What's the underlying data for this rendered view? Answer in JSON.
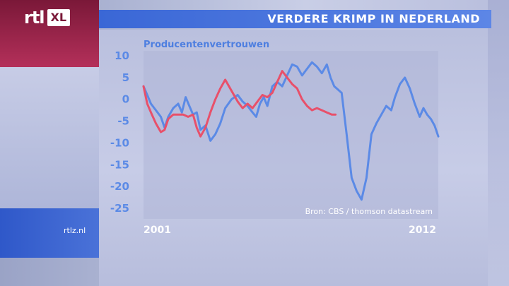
{
  "header": {
    "logo": "rtl XL",
    "title": "VERDERE KRIMP IN NEDERLAND"
  },
  "footer": {
    "site": "rtlz.nl"
  },
  "colors": {
    "primary_line": "#5b8ae6",
    "secondary_line": "#e8506a",
    "title_bar": "#3a67d6",
    "brand": "#7a1838"
  },
  "chart_data": {
    "type": "line",
    "title": "Producentenvertrouwen",
    "source": "Bron: CBS / thomson datastream",
    "xlabel": "",
    "ylabel": "",
    "x_range": [
      2001.0,
      2012.9
    ],
    "x_tick_labels": [
      "2001",
      "2012"
    ],
    "ylim": [
      -26,
      11
    ],
    "y_ticks": [
      10,
      5,
      0,
      -5,
      -10,
      -15,
      -20,
      -25
    ],
    "grid": false,
    "series": [
      {
        "color": "#5b8ae6",
        "x": [
          2001.0,
          2001.15,
          2001.3,
          2001.5,
          2001.7,
          2001.85,
          2002.0,
          2002.2,
          2002.4,
          2002.55,
          2002.7,
          2002.85,
          2003.0,
          2003.15,
          2003.3,
          2003.5,
          2003.7,
          2003.9,
          2004.1,
          2004.3,
          2004.55,
          2004.8,
          2005.0,
          2005.2,
          2005.4,
          2005.55,
          2005.7,
          2005.85,
          2006.0,
          2006.2,
          2006.4,
          2006.6,
          2006.8,
          2007.0,
          2007.2,
          2007.4,
          2007.6,
          2007.8,
          2008.0,
          2008.2,
          2008.4,
          2008.55,
          2008.7,
          2008.8,
          2009.0,
          2009.2,
          2009.4,
          2009.6,
          2009.8,
          2010.0,
          2010.2,
          2010.4,
          2010.6,
          2010.8,
          2011.0,
          2011.15,
          2011.35,
          2011.55,
          2011.75,
          2011.95,
          2012.15,
          2012.3,
          2012.45,
          2012.6,
          2012.75,
          2012.9
        ],
        "y": [
          3.0,
          1.0,
          -1.0,
          -2.5,
          -4.0,
          -6.5,
          -4.0,
          -2.0,
          -1.0,
          -3.0,
          0.5,
          -1.5,
          -3.5,
          -3.0,
          -7.0,
          -6.0,
          -9.5,
          -8.0,
          -5.5,
          -2.0,
          0.0,
          1.0,
          -0.5,
          -1.5,
          -3.0,
          -4.0,
          -1.0,
          0.5,
          -1.5,
          3.0,
          4.0,
          3.0,
          5.5,
          8.0,
          7.5,
          5.5,
          7.0,
          8.5,
          7.5,
          6.0,
          8.0,
          5.0,
          3.0,
          2.5,
          1.5,
          -8.0,
          -18.0,
          -21.0,
          -23.0,
          -18.0,
          -8.0,
          -5.5,
          -3.5,
          -1.5,
          -2.5,
          0.5,
          3.5,
          5.0,
          2.5,
          -1.0,
          -4.0,
          -2.0,
          -3.5,
          -4.5,
          -6.0,
          -8.5
        ]
      },
      {
        "color": "#e8506a",
        "x": [
          2001.0,
          2001.15,
          2001.3,
          2001.5,
          2001.7,
          2001.85,
          2002.0,
          2002.2,
          2002.4,
          2002.6,
          2002.8,
          2003.0,
          2003.15,
          2003.3,
          2003.5,
          2003.7,
          2003.9,
          2004.1,
          2004.3,
          2004.55,
          2004.8,
          2005.0,
          2005.2,
          2005.4,
          2005.6,
          2005.8,
          2006.0,
          2006.2,
          2006.4,
          2006.6,
          2006.8,
          2007.0,
          2007.2,
          2007.4,
          2007.6,
          2007.8,
          2008.0,
          2008.2,
          2008.4,
          2008.6,
          2008.75
        ],
        "y": [
          3.0,
          -1.0,
          -3.0,
          -5.5,
          -7.5,
          -7.0,
          -4.5,
          -3.5,
          -3.5,
          -3.5,
          -4.0,
          -3.5,
          -6.5,
          -8.5,
          -6.5,
          -3.0,
          0.0,
          2.5,
          4.5,
          2.0,
          -0.5,
          -2.0,
          -1.0,
          -2.0,
          -0.5,
          1.0,
          0.5,
          1.5,
          4.0,
          6.5,
          5.0,
          3.5,
          2.5,
          0.0,
          -1.5,
          -2.5,
          -2.0,
          -2.5,
          -3.0,
          -3.5,
          -3.5
        ]
      }
    ]
  }
}
